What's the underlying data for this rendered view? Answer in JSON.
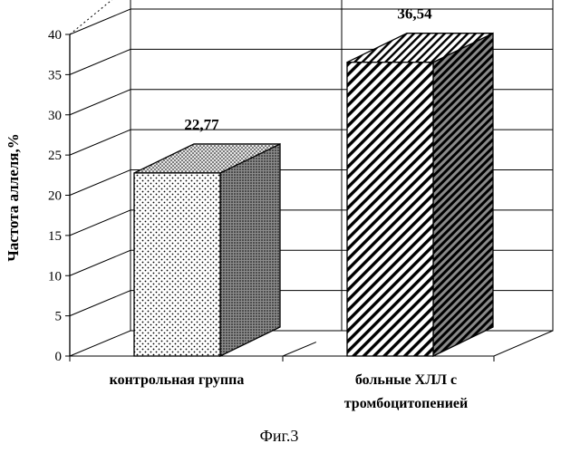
{
  "chart_data": {
    "type": "bar",
    "style": "3d",
    "categories": [
      "контрольная группа",
      "больные ХЛЛ с тромбоцитопенией"
    ],
    "category_lines": [
      [
        "контрольная группа"
      ],
      [
        "больные ХЛЛ с",
        "тромбоцитопенией"
      ]
    ],
    "values": [
      22.77,
      36.54
    ],
    "value_labels": [
      "22,77",
      "36,54"
    ],
    "ylabel": "Частота аллеля,%",
    "xlabel": "",
    "ylim": [
      0,
      40
    ],
    "yticks": [
      0,
      5,
      10,
      15,
      20,
      25,
      30,
      35,
      40
    ],
    "grid": true,
    "legend": "none",
    "bar_fills": [
      "dotted",
      "diagonal-hatch"
    ]
  },
  "caption": "Фиг.3"
}
